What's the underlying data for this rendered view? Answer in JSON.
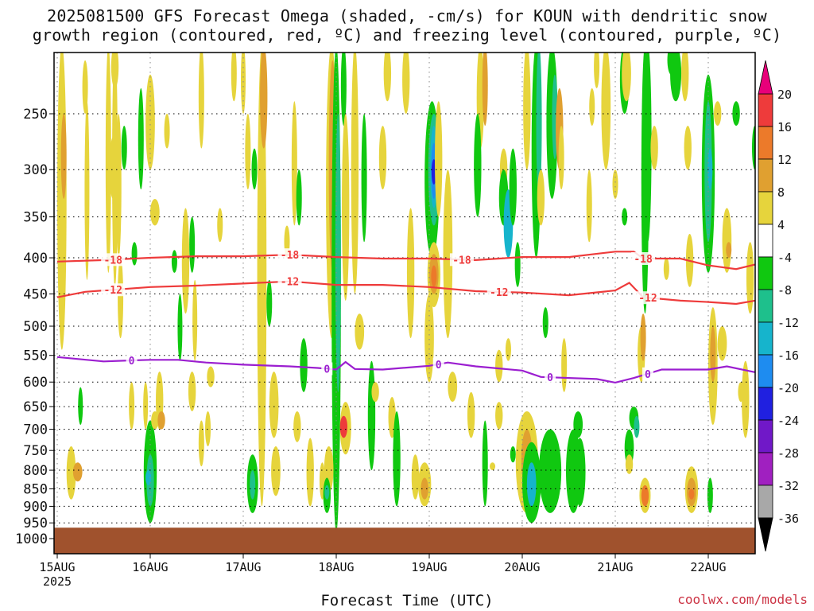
{
  "title": {
    "line1": "2025081500 GFS Forecast Omega (shaded, -cm/s) for KOUN with dendritic snow",
    "line2": "growth region (contoured, red, ºC) and freezing level (contoured, purple, ºC)"
  },
  "source": "coolwx.com/models",
  "chart_data": {
    "type": "heatmap",
    "title": "2025081500 GFS Forecast Omega (shaded, -cm/s) for KOUN with dendritic snow growth region (contoured, red, ºC) and freezing level (contoured, purple, ºC)",
    "xlabel": "Forecast Time (UTC)",
    "ylabel": "",
    "x_ticks": [
      "15AUG",
      "16AUG",
      "17AUG",
      "18AUG",
      "19AUG",
      "20AUG",
      "21AUG",
      "22AUG"
    ],
    "x_tick_year": "2025",
    "x_range_days": [
      0,
      7.5
    ],
    "y_axis": "pressure (hPa), log scale, inverted",
    "y_ticks": [
      250,
      300,
      350,
      400,
      450,
      500,
      550,
      600,
      650,
      700,
      750,
      800,
      850,
      900,
      950,
      1000
    ],
    "y_range": [
      200,
      1030
    ],
    "grid": true,
    "colorbar": {
      "levels": [
        -36,
        -32,
        -28,
        -24,
        -20,
        -16,
        -12,
        -8,
        -4,
        4,
        8,
        12,
        16,
        20
      ],
      "tick_labels": [
        "20",
        "16",
        "12",
        "8",
        "4",
        "-4",
        "-8",
        "-12",
        "-16",
        "-20",
        "-24",
        "-28",
        "-32",
        "-36"
      ],
      "bins": [
        {
          "range": "> 20",
          "color": "#e8007a"
        },
        {
          "range": "16 to 20",
          "color": "#ee3b3b"
        },
        {
          "range": "12 to 16",
          "color": "#ec7a2a"
        },
        {
          "range": "8 to 12",
          "color": "#e0a030"
        },
        {
          "range": "4 to 8",
          "color": "#e6d43c"
        },
        {
          "range": "-4 to 4",
          "color": "#ffffff"
        },
        {
          "range": "-8 to -4",
          "color": "#10c810"
        },
        {
          "range": "-12 to -8",
          "color": "#1ec08c"
        },
        {
          "range": "-16 to -12",
          "color": "#16b4cc"
        },
        {
          "range": "-20 to -16",
          "color": "#1e8cf0"
        },
        {
          "range": "-24 to -20",
          "color": "#2020e0"
        },
        {
          "range": "-28 to -24",
          "color": "#7018c8"
        },
        {
          "range": "-32 to -28",
          "color": "#a020c0"
        },
        {
          "range": "-36 to -32",
          "color": "#a8a8a8"
        },
        {
          "range": "< -36",
          "color": "#000000"
        }
      ]
    },
    "contours": [
      {
        "name": "-18",
        "color": "#ee3b3b",
        "label_days": [
          0.6,
          2.5,
          4.35,
          6.3
        ],
        "points": [
          [
            0,
            405
          ],
          [
            0.5,
            403
          ],
          [
            1.0,
            400
          ],
          [
            1.5,
            398
          ],
          [
            2.0,
            398
          ],
          [
            2.5,
            396
          ],
          [
            3.0,
            399
          ],
          [
            3.5,
            401
          ],
          [
            4.0,
            401
          ],
          [
            4.5,
            403
          ],
          [
            5.0,
            399
          ],
          [
            5.5,
            399
          ],
          [
            6.0,
            392
          ],
          [
            6.2,
            392
          ],
          [
            6.3,
            401
          ],
          [
            6.7,
            401
          ],
          [
            7.0,
            410
          ],
          [
            7.3,
            415
          ],
          [
            7.5,
            409
          ]
        ]
      },
      {
        "name": "-12",
        "color": "#ee3b3b",
        "label_days": [
          0.6,
          2.5,
          4.75,
          6.35
        ],
        "points": [
          [
            0,
            455
          ],
          [
            0.3,
            447
          ],
          [
            1.0,
            440
          ],
          [
            1.5,
            438
          ],
          [
            2.0,
            435
          ],
          [
            2.5,
            432
          ],
          [
            3.0,
            437
          ],
          [
            3.5,
            437
          ],
          [
            4.0,
            440
          ],
          [
            4.5,
            446
          ],
          [
            5.0,
            448
          ],
          [
            5.5,
            452
          ],
          [
            6.0,
            445
          ],
          [
            6.15,
            434
          ],
          [
            6.3,
            455
          ],
          [
            6.7,
            460
          ],
          [
            7.0,
            462
          ],
          [
            7.3,
            465
          ],
          [
            7.5,
            460
          ]
        ]
      },
      {
        "name": "0",
        "color": "#9b1ed0",
        "label_days": [
          0.8,
          2.9,
          4.1,
          5.3,
          6.35
        ],
        "points": [
          [
            0,
            553
          ],
          [
            0.5,
            561
          ],
          [
            0.8,
            559
          ],
          [
            1.0,
            558
          ],
          [
            1.3,
            558
          ],
          [
            1.6,
            563
          ],
          [
            2.0,
            567
          ],
          [
            2.5,
            570
          ],
          [
            2.8,
            573
          ],
          [
            3.0,
            576
          ],
          [
            3.1,
            562
          ],
          [
            3.2,
            575
          ],
          [
            3.5,
            576
          ],
          [
            4.0,
            569
          ],
          [
            4.2,
            563
          ],
          [
            4.5,
            570
          ],
          [
            5.0,
            578
          ],
          [
            5.2,
            590
          ],
          [
            5.8,
            594
          ],
          [
            6.0,
            601
          ],
          [
            6.2,
            592
          ],
          [
            6.5,
            576
          ],
          [
            7.0,
            576
          ],
          [
            7.2,
            570
          ],
          [
            7.5,
            581
          ]
        ]
      }
    ],
    "shaded_features": [
      {
        "day": 4.05,
        "p_top": 260,
        "p_bottom": 340,
        "max": -24,
        "note": "strong upward motion core"
      },
      {
        "day": 3.08,
        "p_top": 660,
        "p_bottom": 720,
        "max": 16
      },
      {
        "day": 6.8,
        "p_top": 820,
        "p_bottom": 900,
        "max": 12
      },
      {
        "day": 7.4,
        "p_top": 800,
        "p_bottom": 880,
        "max": 12
      }
    ],
    "ground": {
      "p_top": 965,
      "color": "#a0522d"
    }
  },
  "colors": {
    "ground": "#a0522d",
    "grid": "#000000"
  }
}
